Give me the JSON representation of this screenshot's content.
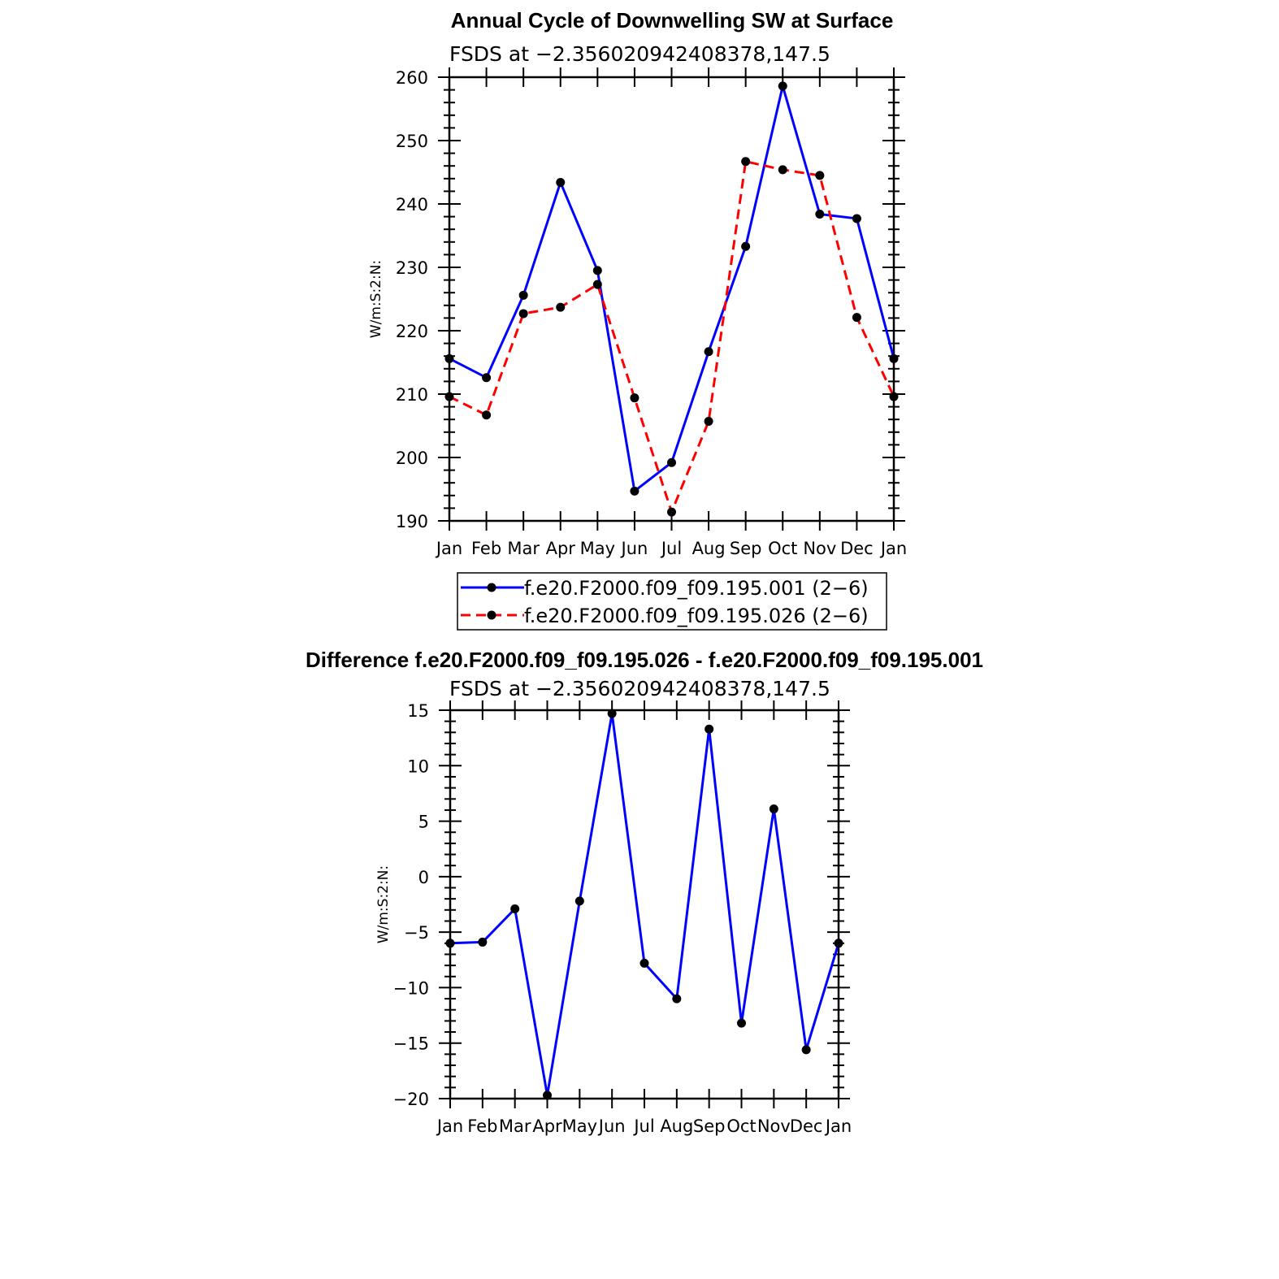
{
  "chart_data": [
    {
      "type": "line",
      "title": "Annual Cycle of Downwelling SW at Surface",
      "subtitle": "FSDS at −2.356020942408378,147.5",
      "ylabel": "W/m:S:2:N:",
      "xlabel": "",
      "categories": [
        "Jan",
        "Feb",
        "Mar",
        "Apr",
        "May",
        "Jun",
        "Jul",
        "Aug",
        "Sep",
        "Oct",
        "Nov",
        "Dec",
        "Jan"
      ],
      "ylim": [
        190,
        260
      ],
      "yticks": [
        190,
        200,
        210,
        220,
        230,
        240,
        250,
        260
      ],
      "legend_position": "bottom",
      "series": [
        {
          "name": "f.e20.F2000.f09_f09.195.001 (2−6)",
          "color": "#0000ff",
          "dash": "solid",
          "values": [
            215.6,
            212.6,
            225.6,
            243.4,
            229.5,
            194.7,
            199.2,
            216.7,
            233.3,
            258.6,
            238.4,
            237.7,
            215.6
          ]
        },
        {
          "name": "f.e20.F2000.f09_f09.195.026 (2−6)",
          "color": "#ff0000",
          "dash": "dashed",
          "values": [
            209.6,
            206.7,
            222.7,
            223.7,
            227.3,
            209.4,
            191.4,
            205.7,
            246.7,
            245.4,
            244.5,
            222.1,
            209.6
          ]
        }
      ]
    },
    {
      "type": "line",
      "title": "Difference f.e20.F2000.f09_f09.195.026 - f.e20.F2000.f09_f09.195.001",
      "subtitle": "FSDS at −2.356020942408378,147.5",
      "ylabel": "W/m:S:2:N:",
      "xlabel": "",
      "categories": [
        "Jan",
        "Feb",
        "Mar",
        "Apr",
        "May",
        "Jun",
        "Jul",
        "Aug",
        "Sep",
        "Oct",
        "Nov",
        "Dec",
        "Jan"
      ],
      "ylim": [
        -20,
        15
      ],
      "yticks": [
        -20,
        -15,
        -10,
        -5,
        0,
        5,
        10,
        15
      ],
      "series": [
        {
          "color": "#0000ff",
          "dash": "solid",
          "values": [
            -6.0,
            -5.9,
            -2.9,
            -19.7,
            -2.2,
            14.7,
            -7.8,
            -11.0,
            13.3,
            -13.2,
            6.1,
            -15.6,
            -6.0
          ]
        }
      ]
    }
  ]
}
